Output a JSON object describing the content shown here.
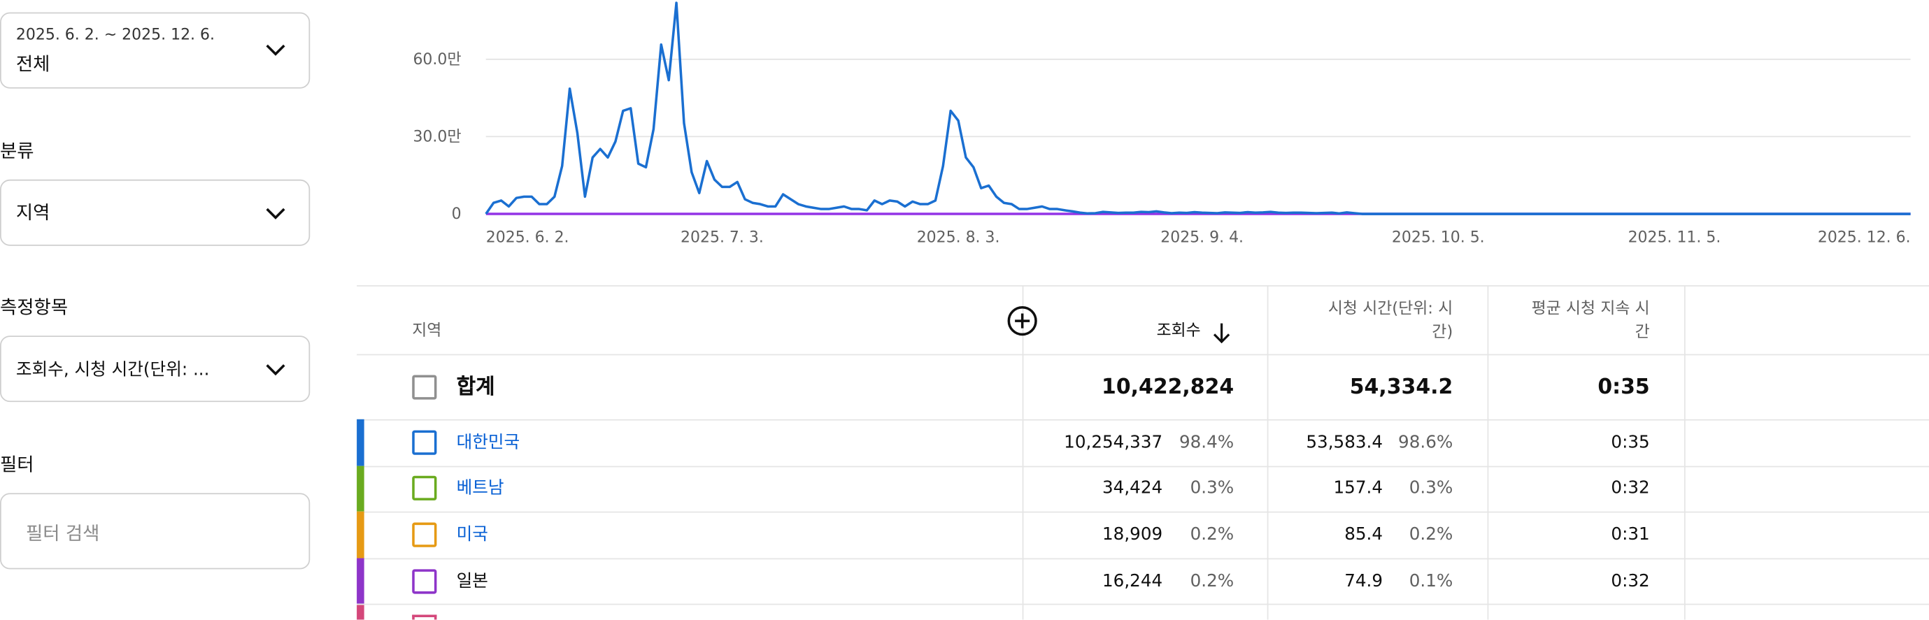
{
  "sidebar": {
    "date_range": {
      "range": "2025. 6. 2. ~ 2025. 12. 6.",
      "value": "전체"
    },
    "category": {
      "label": "분류",
      "value": "지역"
    },
    "metrics": {
      "label": "측정항목",
      "value": "조회수, 시청 시간(단위: ..."
    },
    "filter": {
      "label": "필터",
      "placeholder": "필터 검색"
    }
  },
  "chart_data": {
    "type": "line",
    "x": [
      "2025-06-02",
      "2025-06-03",
      "2025-06-04",
      "2025-06-05",
      "2025-06-06",
      "2025-06-07",
      "2025-06-08",
      "2025-06-09",
      "2025-06-10",
      "2025-06-11",
      "2025-06-12",
      "2025-06-13",
      "2025-06-14",
      "2025-06-15",
      "2025-06-16",
      "2025-06-17",
      "2025-06-18",
      "2025-06-19",
      "2025-06-20",
      "2025-06-21",
      "2025-06-22",
      "2025-06-23",
      "2025-06-24",
      "2025-06-25",
      "2025-06-26",
      "2025-06-27",
      "2025-06-28",
      "2025-06-29",
      "2025-06-30",
      "2025-07-01",
      "2025-07-02",
      "2025-07-03",
      "2025-07-04",
      "2025-07-05",
      "2025-07-06",
      "2025-07-07",
      "2025-07-08",
      "2025-07-09",
      "2025-07-10",
      "2025-07-11",
      "2025-07-12",
      "2025-07-13",
      "2025-07-14",
      "2025-07-15",
      "2025-07-16",
      "2025-07-17",
      "2025-07-18",
      "2025-07-19",
      "2025-07-20",
      "2025-07-21",
      "2025-07-22",
      "2025-07-23",
      "2025-07-24",
      "2025-07-25",
      "2025-07-26",
      "2025-07-27",
      "2025-07-28",
      "2025-07-29",
      "2025-07-30",
      "2025-07-31",
      "2025-08-01",
      "2025-08-02",
      "2025-08-03",
      "2025-08-04",
      "2025-08-05",
      "2025-08-06",
      "2025-08-07",
      "2025-08-08",
      "2025-08-09",
      "2025-08-10",
      "2025-08-11",
      "2025-08-12",
      "2025-08-13",
      "2025-08-14",
      "2025-08-15",
      "2025-08-16",
      "2025-08-17",
      "2025-08-18",
      "2025-08-19",
      "2025-08-20",
      "2025-08-21",
      "2025-08-22",
      "2025-08-23",
      "2025-08-24",
      "2025-08-25",
      "2025-08-26",
      "2025-08-27",
      "2025-08-28",
      "2025-08-29",
      "2025-08-30",
      "2025-08-31",
      "2025-09-01",
      "2025-09-02",
      "2025-09-03",
      "2025-09-04",
      "2025-09-05",
      "2025-09-06",
      "2025-09-07",
      "2025-09-08",
      "2025-09-09",
      "2025-09-10",
      "2025-09-11",
      "2025-09-12",
      "2025-09-13",
      "2025-09-14",
      "2025-09-15",
      "2025-09-16",
      "2025-09-17",
      "2025-09-18",
      "2025-09-19",
      "2025-09-20",
      "2025-09-21",
      "2025-09-22",
      "2025-09-23",
      "2025-09-24",
      "2025-09-25",
      "2025-09-26",
      "2025-09-27",
      "2025-09-28",
      "2025-10-05",
      "2025-11-05",
      "2025-12-06"
    ],
    "series": [
      {
        "color": "#1a6fd1",
        "values": [
          0,
          43000,
          52000,
          29000,
          62000,
          67000,
          67000,
          38000,
          38000,
          67000,
          186000,
          486000,
          314000,
          67000,
          219000,
          252000,
          219000,
          281000,
          400000,
          410000,
          195000,
          181000,
          329000,
          657000,
          519000,
          819000,
          352000,
          162000,
          81000,
          205000,
          133000,
          105000,
          105000,
          124000,
          57000,
          43000,
          38000,
          29000,
          29000,
          76000,
          57000,
          38000,
          29000,
          24000,
          19000,
          19000,
          24000,
          29000,
          19000,
          19000,
          14000,
          52000,
          38000,
          52000,
          48000,
          29000,
          48000,
          38000,
          38000,
          52000,
          186000,
          400000,
          362000,
          219000,
          181000,
          100000,
          110000,
          67000,
          43000,
          38000,
          19000,
          19000,
          24000,
          29000,
          19000,
          19000,
          14000,
          10000,
          5000,
          2000,
          3000,
          8000,
          6000,
          4000,
          5000,
          5000,
          8000,
          7000,
          10000,
          6000,
          3000,
          5000,
          4000,
          7000,
          5000,
          4000,
          3000,
          6000,
          5000,
          4000,
          7000,
          5000,
          6000,
          8000,
          5000,
          4000,
          5000,
          5000,
          4000,
          3000,
          4000,
          5000,
          2000,
          6000,
          3000,
          0,
          0,
          0,
          0,
          0,
          0,
          0
        ]
      },
      {
        "color": "#9334e6",
        "values": [
          90,
          90,
          90,
          90,
          90,
          90,
          90,
          90,
          90,
          90,
          90,
          90,
          90,
          90,
          90,
          90,
          90,
          90,
          90,
          90,
          90,
          90,
          90,
          90,
          90,
          90,
          90,
          90,
          90,
          90,
          90,
          90,
          90,
          90,
          90,
          90,
          90,
          90,
          90,
          90,
          90,
          90,
          90,
          90,
          90,
          90,
          90,
          90,
          90,
          90,
          90,
          90,
          90,
          90,
          90,
          90,
          90,
          90,
          90,
          90,
          90,
          90,
          90,
          90,
          90,
          90,
          90,
          90,
          90,
          90,
          90,
          90,
          90,
          90,
          90,
          90,
          90,
          90,
          90,
          90,
          90,
          90,
          90,
          90,
          90,
          90,
          90,
          90,
          90,
          90,
          90,
          90,
          90,
          90,
          90,
          90,
          90,
          90,
          90,
          90,
          90,
          90,
          90,
          90,
          90,
          90,
          90,
          90,
          90,
          90,
          90,
          90,
          90,
          90,
          90,
          90,
          90,
          90,
          90,
          90,
          90,
          90
        ]
      }
    ],
    "xlim": [
      "2025-06-02",
      "2025-12-06"
    ],
    "xticks": [
      {
        "value": "2025-06-02",
        "label": "2025. 6. 2."
      },
      {
        "value": "2025-07-03",
        "label": "2025. 7. 3."
      },
      {
        "value": "2025-08-03",
        "label": "2025. 8. 3."
      },
      {
        "value": "2025-09-04",
        "label": "2025. 9. 4."
      },
      {
        "value": "2025-10-05",
        "label": "2025. 10. 5."
      },
      {
        "value": "2025-11-05",
        "label": "2025. 11. 5."
      },
      {
        "value": "2025-12-06",
        "label": "2025. 12. 6."
      }
    ],
    "ylim": [
      0,
      830000
    ],
    "yticks": [
      0,
      {
        "value": 300000,
        "label": "30.0만"
      },
      {
        "value": 600000,
        "label": "60.0만"
      }
    ],
    "grid": true
  },
  "table": {
    "headers": {
      "region": "지역",
      "views": "조회수",
      "hours": "시청 시간(단위: 시간)",
      "avg": "평균 시청 지속 시간"
    },
    "total": {
      "label": "합계",
      "views": "10,422,824",
      "hours": "54,334.2",
      "avg": "0:35"
    },
    "rows": [
      {
        "name": "대한민국",
        "color": "#1a6fd1",
        "linked": true,
        "views": "10,254,337",
        "views_pct": "98.4%",
        "hours": "53,583.4",
        "hours_pct": "98.6%",
        "avg": "0:35"
      },
      {
        "name": "베트남",
        "color": "#6aab1f",
        "linked": true,
        "views": "34,424",
        "views_pct": "0.3%",
        "hours": "157.4",
        "hours_pct": "0.3%",
        "avg": "0:32"
      },
      {
        "name": "미국",
        "color": "#e69a14",
        "linked": true,
        "views": "18,909",
        "views_pct": "0.2%",
        "hours": "85.4",
        "hours_pct": "0.2%",
        "avg": "0:31"
      },
      {
        "name": "일본",
        "color": "#8e35c9",
        "linked": false,
        "views": "16,244",
        "views_pct": "0.2%",
        "hours": "74.9",
        "hours_pct": "0.1%",
        "avg": "0:32"
      }
    ]
  }
}
